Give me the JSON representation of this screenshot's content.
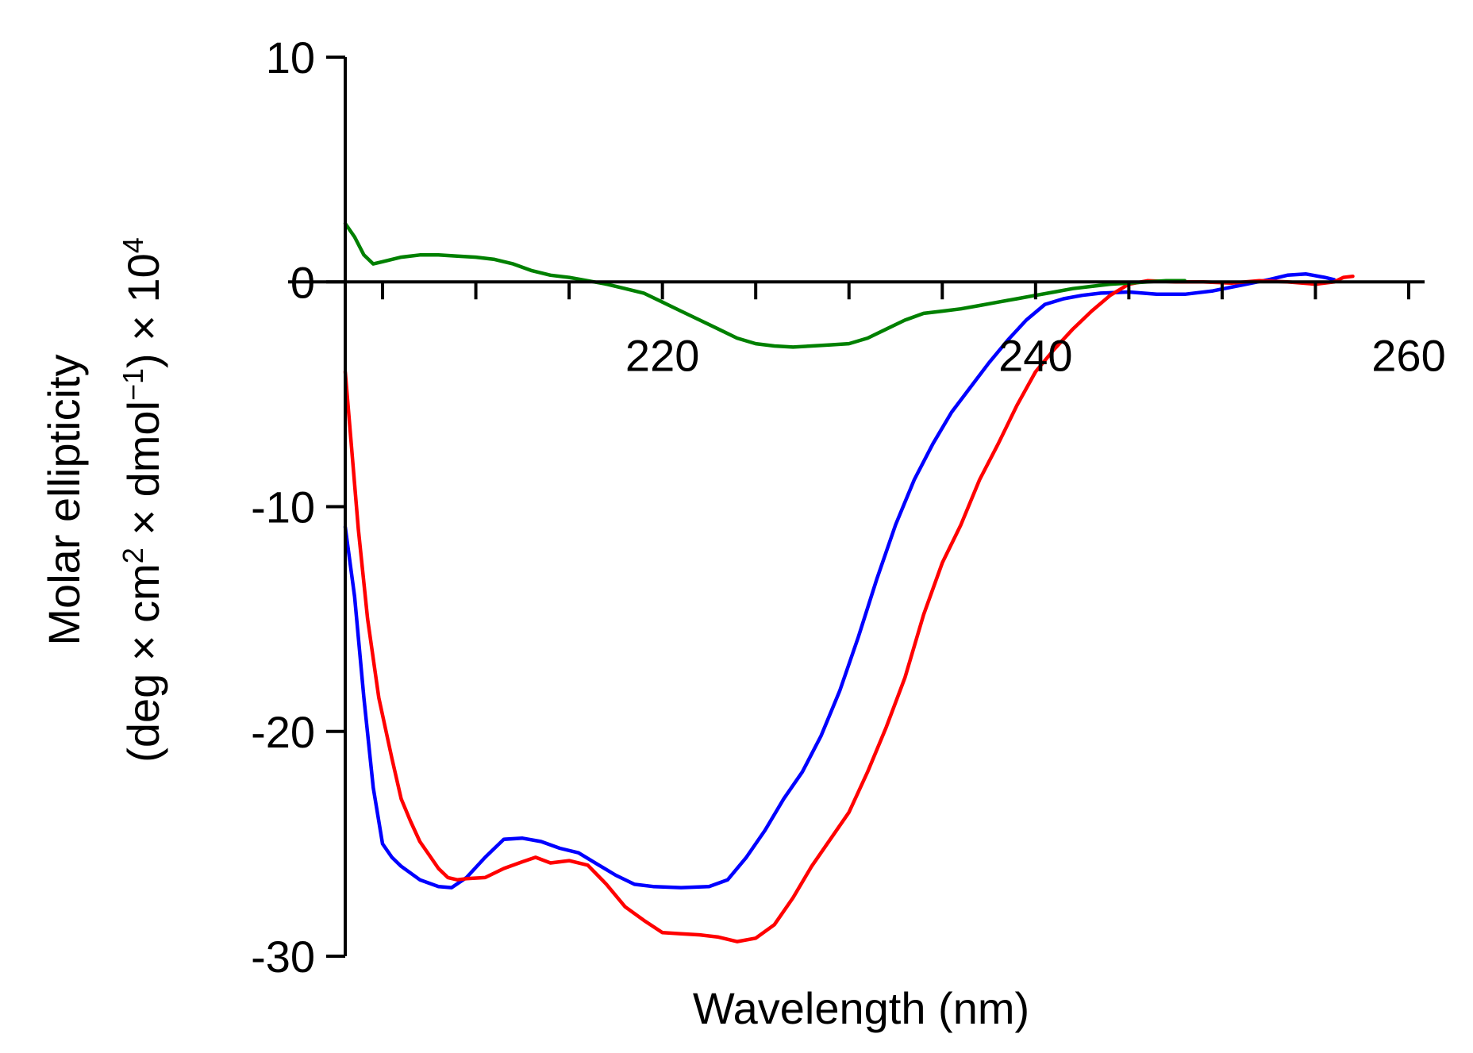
{
  "chart_data": {
    "type": "line",
    "title": "",
    "xlabel": "Wavelength (nm)",
    "ylabel_line1": "Molar ellipticity",
    "ylabel_line2_prefix": "(deg × cm",
    "ylabel_sup1": "2",
    "ylabel_mid1": " × dmol",
    "ylabel_sup2": "−1",
    "ylabel_mid2": ") × 10",
    "ylabel_sup3": "4",
    "xlim": [
      203,
      260
    ],
    "ylim": [
      -30,
      10
    ],
    "x_ticks": [
      205,
      210,
      215,
      220,
      225,
      230,
      235,
      240,
      245,
      250,
      255,
      260
    ],
    "x_tick_labels": [
      {
        "value": 220,
        "label": "220"
      },
      {
        "value": 240,
        "label": "240"
      },
      {
        "value": 260,
        "label": "260"
      }
    ],
    "y_tick_labels": [
      {
        "value": 10,
        "label": "10"
      },
      {
        "value": 0,
        "label": "0"
      },
      {
        "value": -10,
        "label": "-10"
      },
      {
        "value": -20,
        "label": "-20"
      },
      {
        "value": -30,
        "label": "-30"
      }
    ],
    "grid": false,
    "legend": "none",
    "series": [
      {
        "name": "blue",
        "color": "#0000ff",
        "points": [
          [
            203.0,
            -10.9
          ],
          [
            203.5,
            -14.0
          ],
          [
            204.0,
            -18.5
          ],
          [
            204.5,
            -22.5
          ],
          [
            205.0,
            -25.0
          ],
          [
            205.5,
            -25.6
          ],
          [
            206.0,
            -26.0
          ],
          [
            207.0,
            -26.6
          ],
          [
            208.0,
            -26.9
          ],
          [
            208.7,
            -26.95
          ],
          [
            209.5,
            -26.5
          ],
          [
            210.5,
            -25.6
          ],
          [
            211.5,
            -24.8
          ],
          [
            212.5,
            -24.75
          ],
          [
            213.5,
            -24.9
          ],
          [
            214.5,
            -25.2
          ],
          [
            215.5,
            -25.4
          ],
          [
            216.5,
            -25.9
          ],
          [
            217.5,
            -26.4
          ],
          [
            218.5,
            -26.8
          ],
          [
            219.5,
            -26.9
          ],
          [
            221.0,
            -26.95
          ],
          [
            222.5,
            -26.9
          ],
          [
            223.5,
            -26.6
          ],
          [
            224.5,
            -25.6
          ],
          [
            225.5,
            -24.4
          ],
          [
            226.5,
            -23.0
          ],
          [
            227.5,
            -21.8
          ],
          [
            228.5,
            -20.2
          ],
          [
            229.5,
            -18.2
          ],
          [
            230.5,
            -15.8
          ],
          [
            231.5,
            -13.2
          ],
          [
            232.5,
            -10.8
          ],
          [
            233.5,
            -8.8
          ],
          [
            234.5,
            -7.2
          ],
          [
            235.5,
            -5.8
          ],
          [
            236.5,
            -4.7
          ],
          [
            237.5,
            -3.6
          ],
          [
            238.5,
            -2.6
          ],
          [
            239.5,
            -1.7
          ],
          [
            240.5,
            -1.0
          ],
          [
            241.5,
            -0.75
          ],
          [
            242.5,
            -0.6
          ],
          [
            243.5,
            -0.5
          ],
          [
            245.0,
            -0.45
          ],
          [
            246.5,
            -0.55
          ],
          [
            248.0,
            -0.55
          ],
          [
            249.5,
            -0.4
          ],
          [
            251.0,
            -0.15
          ],
          [
            252.5,
            0.1
          ],
          [
            253.5,
            0.3
          ],
          [
            254.5,
            0.35
          ],
          [
            255.5,
            0.2
          ],
          [
            256.0,
            0.1
          ]
        ]
      },
      {
        "name": "red",
        "color": "#ff0000",
        "points": [
          [
            203.0,
            -4.0
          ],
          [
            203.3,
            -7.0
          ],
          [
            203.7,
            -11.0
          ],
          [
            204.2,
            -15.0
          ],
          [
            204.8,
            -18.5
          ],
          [
            205.5,
            -21.2
          ],
          [
            206.0,
            -23.0
          ],
          [
            206.5,
            -24.0
          ],
          [
            207.0,
            -24.9
          ],
          [
            207.5,
            -25.5
          ],
          [
            208.0,
            -26.1
          ],
          [
            208.5,
            -26.5
          ],
          [
            209.0,
            -26.6
          ],
          [
            209.5,
            -26.55
          ],
          [
            210.5,
            -26.5
          ],
          [
            211.5,
            -26.1
          ],
          [
            212.5,
            -25.8
          ],
          [
            213.2,
            -25.6
          ],
          [
            214.0,
            -25.85
          ],
          [
            215.0,
            -25.75
          ],
          [
            216.0,
            -25.95
          ],
          [
            217.0,
            -26.8
          ],
          [
            218.0,
            -27.8
          ],
          [
            219.0,
            -28.4
          ],
          [
            220.0,
            -28.95
          ],
          [
            221.0,
            -29.0
          ],
          [
            222.0,
            -29.05
          ],
          [
            223.0,
            -29.15
          ],
          [
            224.0,
            -29.35
          ],
          [
            225.0,
            -29.2
          ],
          [
            226.0,
            -28.6
          ],
          [
            227.0,
            -27.4
          ],
          [
            228.0,
            -26.0
          ],
          [
            229.0,
            -24.8
          ],
          [
            230.0,
            -23.6
          ],
          [
            231.0,
            -21.8
          ],
          [
            232.0,
            -19.8
          ],
          [
            233.0,
            -17.6
          ],
          [
            234.0,
            -14.8
          ],
          [
            235.0,
            -12.5
          ],
          [
            236.0,
            -10.8
          ],
          [
            237.0,
            -8.8
          ],
          [
            238.0,
            -7.2
          ],
          [
            239.0,
            -5.5
          ],
          [
            240.0,
            -4.0
          ],
          [
            241.0,
            -3.0
          ],
          [
            242.0,
            -2.1
          ],
          [
            243.0,
            -1.3
          ],
          [
            244.0,
            -0.6
          ],
          [
            245.0,
            -0.1
          ],
          [
            246.0,
            0.05
          ],
          [
            247.5,
            0.0
          ],
          [
            249.0,
            0.0
          ],
          [
            250.5,
            -0.05
          ],
          [
            252.0,
            0.05
          ],
          [
            253.5,
            0.0
          ],
          [
            255.0,
            -0.1
          ],
          [
            256.0,
            0.0
          ],
          [
            256.5,
            0.2
          ],
          [
            257.0,
            0.25
          ]
        ]
      },
      {
        "name": "green",
        "color": "#008000",
        "points": [
          [
            203.0,
            2.6
          ],
          [
            203.5,
            2.0
          ],
          [
            204.0,
            1.2
          ],
          [
            204.5,
            0.8
          ],
          [
            205.0,
            0.9
          ],
          [
            206.0,
            1.1
          ],
          [
            207.0,
            1.2
          ],
          [
            208.0,
            1.2
          ],
          [
            209.0,
            1.15
          ],
          [
            210.0,
            1.1
          ],
          [
            211.0,
            1.0
          ],
          [
            212.0,
            0.8
          ],
          [
            213.0,
            0.5
          ],
          [
            214.0,
            0.3
          ],
          [
            215.0,
            0.2
          ],
          [
            216.0,
            0.05
          ],
          [
            217.0,
            -0.1
          ],
          [
            218.0,
            -0.3
          ],
          [
            219.0,
            -0.5
          ],
          [
            220.0,
            -0.9
          ],
          [
            221.0,
            -1.3
          ],
          [
            222.0,
            -1.7
          ],
          [
            223.0,
            -2.1
          ],
          [
            224.0,
            -2.5
          ],
          [
            225.0,
            -2.75
          ],
          [
            226.0,
            -2.85
          ],
          [
            227.0,
            -2.9
          ],
          [
            228.0,
            -2.85
          ],
          [
            229.0,
            -2.8
          ],
          [
            230.0,
            -2.75
          ],
          [
            231.0,
            -2.5
          ],
          [
            232.0,
            -2.1
          ],
          [
            233.0,
            -1.7
          ],
          [
            234.0,
            -1.4
          ],
          [
            235.0,
            -1.3
          ],
          [
            236.0,
            -1.2
          ],
          [
            237.0,
            -1.05
          ],
          [
            238.0,
            -0.9
          ],
          [
            239.0,
            -0.75
          ],
          [
            240.0,
            -0.6
          ],
          [
            241.0,
            -0.45
          ],
          [
            242.0,
            -0.3
          ],
          [
            243.0,
            -0.2
          ],
          [
            244.0,
            -0.1
          ],
          [
            245.0,
            -0.05
          ],
          [
            246.0,
            0.0
          ],
          [
            247.0,
            0.05
          ],
          [
            248.0,
            0.05
          ]
        ]
      }
    ]
  }
}
